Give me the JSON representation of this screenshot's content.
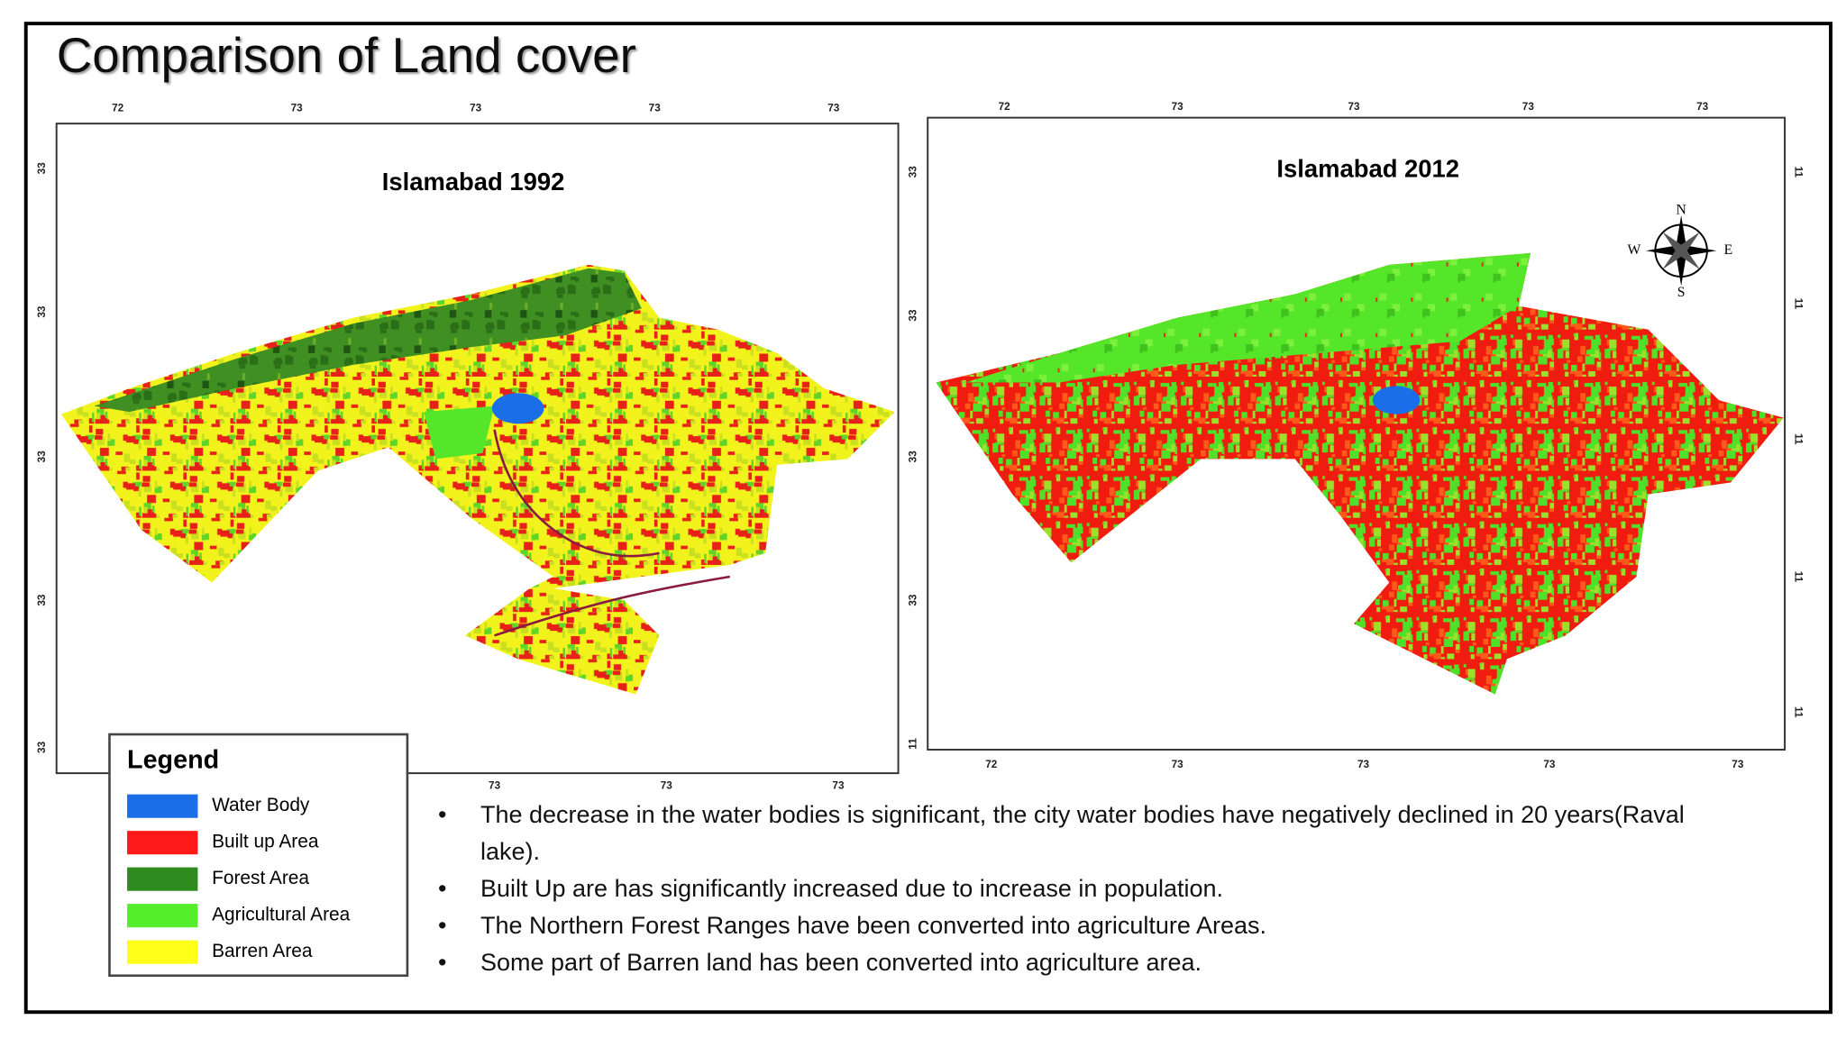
{
  "title": "Comparison of Land cover",
  "maps": [
    {
      "title": "Islamabad 1992",
      "top_labels": [
        "72",
        "73",
        "73",
        "73",
        "73"
      ],
      "bottom_labels": [
        "73",
        "73",
        "73"
      ],
      "left_labels": [
        "33",
        "33",
        "33",
        "33",
        "33"
      ]
    },
    {
      "title": "Islamabad 2012",
      "top_labels": [
        "72",
        "73",
        "73",
        "73",
        "73"
      ],
      "bottom_labels": [
        "72",
        "73",
        "73",
        "73",
        "73"
      ],
      "left_labels": [
        "33",
        "33",
        "33",
        "33",
        "11"
      ],
      "right_labels": [
        "11",
        "11",
        "11",
        "11",
        "11"
      ],
      "compass": [
        "N",
        "E",
        "S",
        "W"
      ]
    }
  ],
  "legend": {
    "title": "Legend",
    "items": [
      {
        "label": "Water Body",
        "color": "#1a6ee8"
      },
      {
        "label": "Built up Area",
        "color": "#ff1a1a"
      },
      {
        "label": "Forest Area",
        "color": "#2e8b1e"
      },
      {
        "label": "Agricultural Area",
        "color": "#55ee2a"
      },
      {
        "label": "Barren Area",
        "color": "#ffff1a"
      }
    ]
  },
  "bullets": [
    "The decrease in the water bodies is significant, the city water bodies have negatively declined in 20 years(Raval lake).",
    "Built Up are has significantly increased due to increase in population.",
    "The Northern Forest Ranges have been converted into agriculture Areas.",
    "Some part of Barren land has been converted into agriculture area."
  ]
}
